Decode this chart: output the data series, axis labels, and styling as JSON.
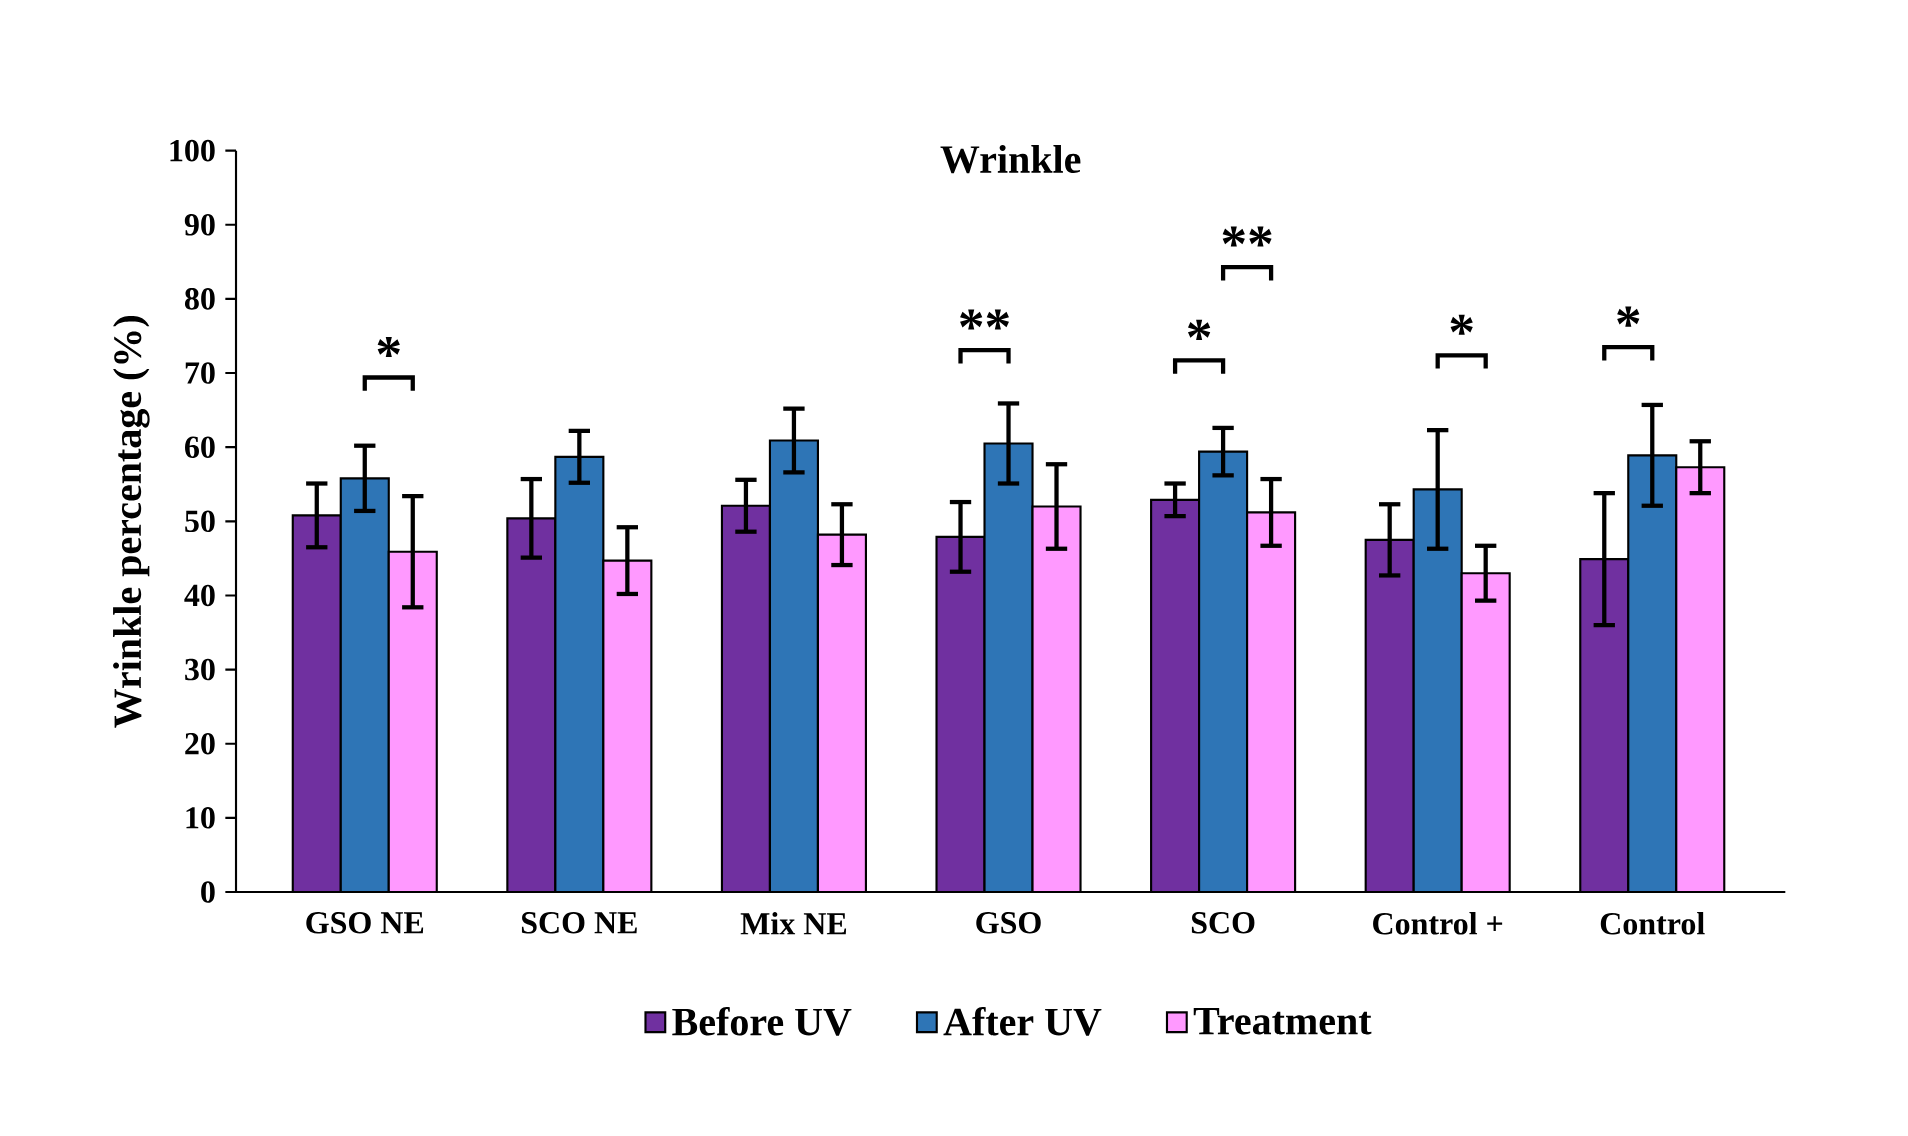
{
  "chart_data": {
    "type": "bar",
    "title": "Wrinkle",
    "ylabel": "Wrinkle percentage (%)",
    "categories": [
      "GSO NE",
      "SCO NE",
      "Mix NE",
      "GSO",
      "SCO",
      "Control +",
      "Control"
    ],
    "series": [
      {
        "name": "Before UV",
        "color": "#7030a0",
        "values": [
          50.8,
          50.4,
          52.1,
          47.9,
          52.9,
          47.5,
          44.9
        ],
        "errors": [
          4.3,
          5.3,
          3.5,
          4.7,
          2.2,
          4.8,
          8.9
        ]
      },
      {
        "name": "After UV",
        "color": "#2e75b6",
        "values": [
          55.8,
          58.7,
          60.9,
          60.5,
          59.4,
          54.3,
          58.9
        ],
        "errors": [
          4.4,
          3.5,
          4.3,
          5.4,
          3.2,
          8.0,
          6.8
        ]
      },
      {
        "name": "Treatment",
        "color": "#ff99ff",
        "values": [
          45.9,
          44.7,
          48.2,
          52.0,
          51.2,
          43.0,
          57.3
        ],
        "errors": [
          7.5,
          4.5,
          4.1,
          5.7,
          4.5,
          3.7,
          3.5
        ]
      }
    ],
    "ylim": [
      0,
      100
    ],
    "yticks": [
      0,
      10,
      20,
      30,
      40,
      50,
      60,
      70,
      80,
      90,
      100
    ],
    "legend": "bottom",
    "grid": false,
    "annotations": [
      "*",
      "**",
      "*",
      "**",
      "*",
      "*"
    ]
  }
}
